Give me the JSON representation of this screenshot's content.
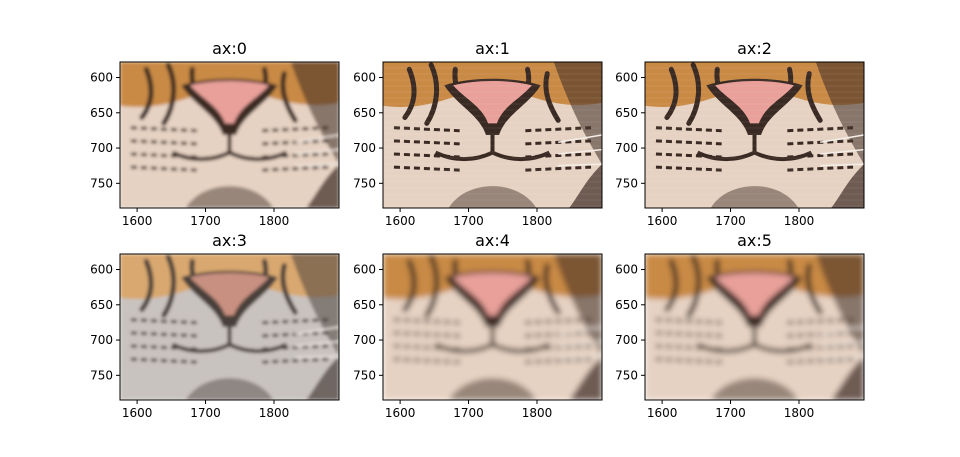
{
  "chart_data": [
    {
      "type": "image",
      "title": "ax:0",
      "xlim": [
        1575,
        1895
      ],
      "ylim": [
        785,
        578
      ],
      "xticks": [
        1600,
        1700,
        1800
      ],
      "yticks": [
        600,
        650,
        700,
        750
      ],
      "style": "smooth"
    },
    {
      "type": "image",
      "title": "ax:1",
      "xlim": [
        1575,
        1895
      ],
      "ylim": [
        785,
        578
      ],
      "xticks": [
        1600,
        1700,
        1800
      ],
      "yticks": [
        600,
        650,
        700,
        750
      ],
      "style": "pixelated"
    },
    {
      "type": "image",
      "title": "ax:2",
      "xlim": [
        1575,
        1895
      ],
      "ylim": [
        785,
        578
      ],
      "xticks": [
        1600,
        1700,
        1800
      ],
      "yticks": [
        600,
        650,
        700,
        750
      ],
      "style": "pixelated"
    },
    {
      "type": "image",
      "title": "ax:3",
      "xlim": [
        1575,
        1895
      ],
      "ylim": [
        785,
        578
      ],
      "xticks": [
        1600,
        1700,
        1800
      ],
      "yticks": [
        600,
        650,
        700,
        750
      ],
      "style": "faded"
    },
    {
      "type": "image",
      "title": "ax:4",
      "xlim": [
        1575,
        1895
      ],
      "ylim": [
        785,
        578
      ],
      "xticks": [
        1600,
        1700,
        1800
      ],
      "yticks": [
        600,
        650,
        700,
        750
      ],
      "style": "blurred"
    },
    {
      "type": "image",
      "title": "ax:5",
      "xlim": [
        1575,
        1895
      ],
      "ylim": [
        785,
        578
      ],
      "xticks": [
        1600,
        1700,
        1800
      ],
      "yticks": [
        600,
        650,
        700,
        750
      ],
      "style": "blurred"
    }
  ],
  "colors": {
    "fur_light": "#e6d2c2",
    "fur_orange": "#c98a45",
    "stripe_dark": "#3a2a24",
    "nose_pink": "#e9a09a",
    "faded_bg": "#c9c3bf"
  }
}
